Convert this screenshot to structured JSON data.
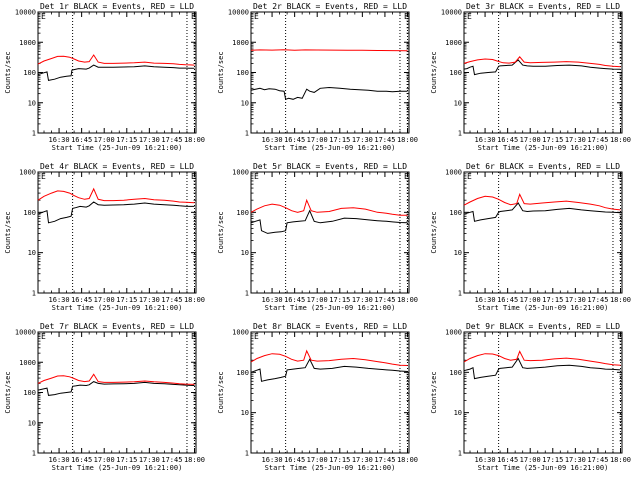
{
  "colors": {
    "events": "#000000",
    "lld": "#ff0000",
    "axes": "#000000",
    "background": "#ffffff"
  },
  "axis": {
    "ylabel": "Counts/sec",
    "xlabel": "Start Time (25-Jun-09 16:21:00)",
    "x_ticks": [
      "16:30",
      "16:45",
      "17:00",
      "17:15",
      "17:30",
      "17:45",
      "18:00"
    ],
    "y_ticks": [
      "1",
      "10",
      "100",
      "1000",
      "10000"
    ],
    "y_scale": "log"
  },
  "chart_data": [
    {
      "type": "line",
      "title": "Det 1r BLACK = Events, RED = LLD",
      "marker_label": "E",
      "ylim": [
        1,
        10000
      ],
      "xlim_minutes": [
        16,
        121
      ],
      "markers_minutes": [
        39,
        115,
        120
      ],
      "series": [
        {
          "name": "Events",
          "color": "#000000",
          "x": [
            16,
            19,
            22,
            23,
            27,
            31,
            35,
            38,
            38.5,
            40,
            43,
            48,
            50,
            53,
            56,
            60,
            66,
            73,
            80,
            87,
            93,
            100,
            106,
            110,
            114,
            117,
            120
          ],
          "y": [
            85,
            95,
            105,
            55,
            60,
            70,
            75,
            78,
            120,
            125,
            135,
            130,
            140,
            175,
            150,
            148,
            150,
            152,
            155,
            165,
            155,
            150,
            145,
            140,
            140,
            138,
            138
          ]
        },
        {
          "name": "LLD",
          "color": "#ff0000",
          "x": [
            16,
            20,
            25,
            29,
            33,
            37,
            40,
            43,
            47,
            50,
            53,
            56,
            60,
            66,
            73,
            80,
            87,
            93,
            100,
            106,
            110,
            114,
            117,
            120
          ],
          "y": [
            190,
            240,
            290,
            340,
            345,
            320,
            280,
            240,
            220,
            230,
            380,
            220,
            200,
            200,
            205,
            210,
            220,
            205,
            200,
            195,
            185,
            180,
            178,
            175
          ]
        }
      ]
    },
    {
      "type": "line",
      "title": "Det 2r BLACK = Events, RED = LLD",
      "marker_label": "E",
      "ylim": [
        1,
        10000
      ],
      "xlim_minutes": [
        16,
        121
      ],
      "markers_minutes": [
        39,
        115,
        120
      ],
      "series": [
        {
          "name": "Events",
          "color": "#000000",
          "x": [
            16,
            19,
            22,
            25,
            28,
            32,
            35,
            38,
            39,
            41,
            44,
            47,
            50,
            53,
            55,
            58,
            62,
            68,
            75,
            82,
            88,
            94,
            100,
            106,
            110,
            115,
            120
          ],
          "y": [
            26,
            28,
            30,
            27,
            29,
            28,
            25,
            24,
            13,
            14,
            13,
            15,
            14,
            28,
            24,
            22,
            30,
            32,
            30,
            28,
            27,
            26,
            24,
            24,
            23,
            24,
            24
          ]
        },
        {
          "name": "LLD",
          "color": "#ff0000",
          "x": [
            16,
            22,
            30,
            38,
            45,
            52,
            60,
            70,
            80,
            90,
            100,
            110,
            120
          ],
          "y": [
            540,
            560,
            550,
            565,
            545,
            560,
            555,
            550,
            545,
            540,
            535,
            530,
            525
          ]
        }
      ]
    },
    {
      "type": "line",
      "title": "Det 3r BLACK = Events, RED = LLD",
      "marker_label": "E",
      "ylim": [
        1,
        10000
      ],
      "xlim_minutes": [
        16,
        121
      ],
      "markers_minutes": [
        39,
        115,
        120
      ],
      "series": [
        {
          "name": "Events",
          "color": "#000000",
          "x": [
            16,
            18,
            20,
            22,
            23,
            27,
            32,
            37,
            39,
            40,
            44,
            48,
            52,
            55,
            58,
            62,
            70,
            78,
            86,
            94,
            100,
            106,
            110,
            115,
            120
          ],
          "y": [
            130,
            135,
            150,
            160,
            85,
            95,
            100,
            105,
            160,
            165,
            170,
            175,
            260,
            175,
            165,
            160,
            160,
            170,
            175,
            165,
            150,
            140,
            135,
            130,
            128
          ]
        },
        {
          "name": "LLD",
          "color": "#ff0000",
          "x": [
            16,
            20,
            25,
            30,
            35,
            38,
            42,
            46,
            50,
            53,
            56,
            60,
            68,
            76,
            84,
            92,
            100,
            106,
            110,
            115,
            120
          ],
          "y": [
            200,
            230,
            260,
            280,
            270,
            240,
            210,
            205,
            220,
            330,
            220,
            210,
            215,
            220,
            230,
            220,
            200,
            185,
            170,
            160,
            155
          ]
        }
      ]
    },
    {
      "type": "line",
      "title": "Det 4r BLACK = Events, RED = LLD",
      "marker_label": "E",
      "ylim": [
        1,
        1000
      ],
      "xlim_minutes": [
        16,
        121
      ],
      "markers_minutes": [
        39,
        115,
        120
      ],
      "series": [
        {
          "name": "Events",
          "color": "#000000",
          "x": [
            16,
            19,
            22,
            23,
            27,
            31,
            35,
            38,
            39,
            41,
            44,
            48,
            50,
            53,
            56,
            60,
            66,
            73,
            80,
            87,
            93,
            100,
            106,
            110,
            114,
            117,
            120
          ],
          "y": [
            90,
            100,
            110,
            55,
            60,
            70,
            75,
            80,
            125,
            130,
            140,
            135,
            145,
            180,
            155,
            150,
            152,
            155,
            160,
            170,
            160,
            155,
            150,
            145,
            142,
            140,
            140
          ]
        },
        {
          "name": "LLD",
          "color": "#ff0000",
          "x": [
            16,
            20,
            25,
            29,
            33,
            37,
            40,
            43,
            47,
            50,
            53,
            56,
            60,
            66,
            73,
            80,
            87,
            93,
            100,
            106,
            110,
            114,
            117,
            120
          ],
          "y": [
            200,
            250,
            300,
            340,
            330,
            300,
            260,
            230,
            210,
            220,
            380,
            210,
            195,
            195,
            200,
            210,
            220,
            205,
            200,
            190,
            180,
            178,
            175,
            172
          ]
        }
      ]
    },
    {
      "type": "line",
      "title": "Det 5r BLACK = Events, RED = LLD",
      "marker_label": "E",
      "ylim": [
        1,
        1000
      ],
      "xlim_minutes": [
        16,
        121
      ],
      "markers_minutes": [
        39,
        115,
        120
      ],
      "series": [
        {
          "name": "Events",
          "color": "#000000",
          "x": [
            16,
            19,
            22,
            23,
            27,
            32,
            36,
            39,
            40,
            44,
            48,
            52,
            55,
            58,
            62,
            70,
            78,
            86,
            94,
            100,
            106,
            110,
            115,
            120
          ],
          "y": [
            55,
            60,
            65,
            35,
            30,
            32,
            33,
            35,
            55,
            58,
            60,
            62,
            110,
            60,
            55,
            60,
            72,
            70,
            65,
            62,
            60,
            58,
            56,
            55
          ]
        },
        {
          "name": "LLD",
          "color": "#ff0000",
          "x": [
            16,
            20,
            25,
            30,
            35,
            39,
            43,
            47,
            51,
            53,
            56,
            60,
            68,
            76,
            84,
            92,
            100,
            106,
            110,
            115,
            120
          ],
          "y": [
            100,
            120,
            145,
            160,
            150,
            130,
            110,
            100,
            110,
            200,
            110,
            100,
            105,
            125,
            130,
            120,
            100,
            95,
            90,
            85,
            85
          ]
        }
      ]
    },
    {
      "type": "line",
      "title": "Det 6r BLACK = Events, RED = LLD",
      "marker_label": "E",
      "ylim": [
        1,
        1000
      ],
      "xlim_minutes": [
        16,
        121
      ],
      "markers_minutes": [
        39,
        115,
        120
      ],
      "series": [
        {
          "name": "Events",
          "color": "#000000",
          "x": [
            16,
            18,
            20,
            22,
            23,
            27,
            32,
            37,
            39,
            40,
            44,
            48,
            52,
            55,
            58,
            62,
            70,
            78,
            86,
            94,
            100,
            106,
            110,
            115,
            120
          ],
          "y": [
            90,
            95,
            100,
            105,
            60,
            65,
            70,
            75,
            100,
            105,
            110,
            115,
            170,
            110,
            105,
            108,
            110,
            118,
            125,
            115,
            110,
            105,
            102,
            100,
            98
          ]
        },
        {
          "name": "LLD",
          "color": "#ff0000",
          "x": [
            16,
            20,
            25,
            30,
            35,
            39,
            43,
            47,
            51,
            53,
            56,
            60,
            68,
            76,
            84,
            92,
            100,
            106,
            110,
            115,
            120
          ],
          "y": [
            150,
            180,
            220,
            250,
            240,
            210,
            175,
            155,
            165,
            280,
            165,
            160,
            170,
            180,
            190,
            175,
            160,
            145,
            130,
            120,
            115
          ]
        }
      ]
    },
    {
      "type": "line",
      "title": "Det 7r BLACK = Events, RED = LLD",
      "marker_label": "E",
      "ylim": [
        1,
        10000
      ],
      "xlim_minutes": [
        16,
        121
      ],
      "markers_minutes": [
        39,
        115,
        120
      ],
      "series": [
        {
          "name": "Events",
          "color": "#000000",
          "x": [
            16,
            19,
            22,
            23,
            27,
            31,
            35,
            38,
            39,
            41,
            44,
            48,
            50,
            53,
            56,
            60,
            66,
            73,
            80,
            87,
            93,
            100,
            106,
            110,
            114,
            117,
            120
          ],
          "y": [
            120,
            130,
            140,
            80,
            85,
            95,
            100,
            105,
            160,
            165,
            175,
            170,
            180,
            230,
            200,
            190,
            192,
            195,
            200,
            215,
            200,
            195,
            185,
            180,
            175,
            172,
            170
          ]
        },
        {
          "name": "LLD",
          "color": "#ff0000",
          "x": [
            16,
            20,
            25,
            29,
            33,
            37,
            40,
            43,
            47,
            50,
            53,
            56,
            60,
            66,
            73,
            80,
            87,
            93,
            100,
            106,
            110,
            114,
            117,
            120
          ],
          "y": [
            200,
            250,
            300,
            350,
            360,
            330,
            290,
            250,
            230,
            240,
            400,
            230,
            215,
            215,
            220,
            225,
            240,
            225,
            215,
            205,
            195,
            190,
            188,
            185
          ]
        }
      ]
    },
    {
      "type": "line",
      "title": "Det 8r BLACK = Events, RED = LLD",
      "marker_label": "E",
      "ylim": [
        1,
        1000
      ],
      "xlim_minutes": [
        16,
        121
      ],
      "markers_minutes": [
        39,
        115,
        120
      ],
      "series": [
        {
          "name": "Events",
          "color": "#000000",
          "x": [
            16,
            19,
            22,
            23,
            27,
            32,
            36,
            39,
            40,
            44,
            48,
            52,
            55,
            58,
            62,
            70,
            78,
            86,
            94,
            100,
            106,
            110,
            115,
            120
          ],
          "y": [
            100,
            110,
            120,
            60,
            65,
            70,
            75,
            80,
            115,
            120,
            125,
            130,
            210,
            125,
            120,
            125,
            140,
            135,
            125,
            120,
            115,
            112,
            108,
            105
          ]
        },
        {
          "name": "LLD",
          "color": "#ff0000",
          "x": [
            16,
            20,
            25,
            30,
            35,
            39,
            43,
            47,
            51,
            53,
            56,
            60,
            68,
            76,
            84,
            92,
            100,
            106,
            110,
            115,
            120
          ],
          "y": [
            180,
            220,
            260,
            290,
            280,
            250,
            210,
            190,
            200,
            340,
            200,
            190,
            195,
            210,
            220,
            205,
            185,
            170,
            160,
            150,
            148
          ]
        }
      ]
    },
    {
      "type": "line",
      "title": "Det 9r BLACK = Events, RED = LLD",
      "marker_label": "E",
      "ylim": [
        1,
        1000
      ],
      "xlim_minutes": [
        16,
        121
      ],
      "markers_minutes": [
        39,
        115,
        120
      ],
      "series": [
        {
          "name": "Events",
          "color": "#000000",
          "x": [
            16,
            18,
            20,
            22,
            23,
            27,
            32,
            37,
            39,
            40,
            44,
            48,
            52,
            55,
            58,
            62,
            70,
            78,
            86,
            94,
            100,
            106,
            110,
            115,
            120
          ],
          "y": [
            110,
            115,
            120,
            130,
            70,
            75,
            80,
            85,
            120,
            125,
            130,
            135,
            220,
            130,
            125,
            128,
            135,
            145,
            150,
            140,
            130,
            125,
            120,
            118,
            115
          ]
        },
        {
          "name": "LLD",
          "color": "#ff0000",
          "x": [
            16,
            20,
            25,
            30,
            35,
            39,
            43,
            47,
            51,
            53,
            56,
            60,
            68,
            76,
            84,
            92,
            100,
            106,
            110,
            115,
            120
          ],
          "y": [
            180,
            220,
            260,
            290,
            285,
            260,
            220,
            200,
            210,
            330,
            200,
            195,
            200,
            215,
            225,
            210,
            190,
            175,
            165,
            155,
            150
          ]
        }
      ]
    }
  ]
}
